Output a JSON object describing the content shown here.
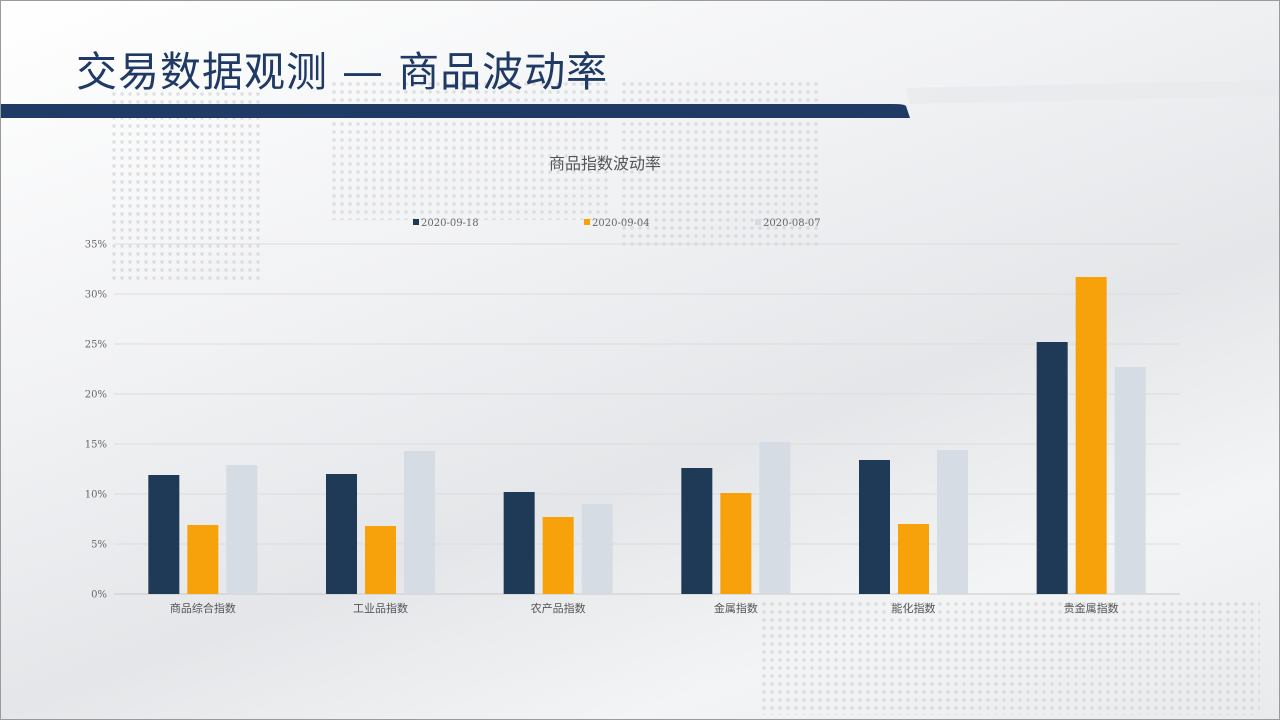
{
  "page": {
    "title": "交易数据观测 — 商品波动率"
  },
  "colors": {
    "header_blue": "#1f3a64",
    "series_1": "#1f3a56",
    "series_2": "#f7a20a",
    "series_3": "#d5dce4"
  },
  "chart_data": {
    "type": "bar",
    "title": "商品指数波动率",
    "categories": [
      "商品综合指数",
      "工业品指数",
      "农产品指数",
      "金属指数",
      "能化指数",
      "贵金属指数"
    ],
    "series": [
      {
        "name": "2020-09-18",
        "color": "#1f3a56",
        "values": [
          11.9,
          12.0,
          10.2,
          12.6,
          13.4,
          25.2
        ]
      },
      {
        "name": "2020-09-04",
        "color": "#f7a20a",
        "values": [
          6.9,
          6.8,
          7.7,
          10.1,
          7.0,
          31.7
        ]
      },
      {
        "name": "2020-08-07",
        "color": "#d5dce4",
        "values": [
          12.9,
          14.3,
          9.0,
          15.2,
          14.4,
          22.7
        ]
      }
    ],
    "ylim": [
      0,
      35
    ],
    "y_ticks": [
      0,
      5,
      10,
      15,
      20,
      25,
      30,
      35
    ],
    "y_tick_labels": [
      "0%",
      "5%",
      "10%",
      "15%",
      "20%",
      "25%",
      "30%",
      "35%"
    ],
    "xlabel": "",
    "ylabel": "",
    "grid": true,
    "legend_position": "top"
  }
}
